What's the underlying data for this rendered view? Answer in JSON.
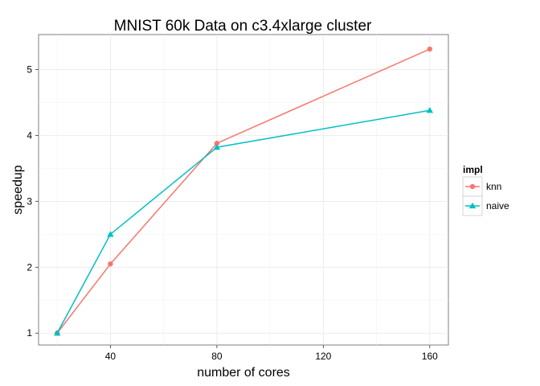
{
  "chart_data": {
    "type": "line",
    "title": "MNIST 60k Data on c3.4xlarge cluster",
    "xlabel": "number of cores",
    "ylabel": "speedup",
    "xlim": [
      13,
      167
    ],
    "ylim": [
      0.82,
      5.53
    ],
    "x_ticks": [
      40,
      80,
      120,
      160
    ],
    "y_ticks": [
      1,
      2,
      3,
      4,
      5
    ],
    "x_minor": [
      20,
      60,
      100,
      140
    ],
    "y_minor": [
      1.5,
      2.5,
      3.5,
      4.5
    ],
    "grid": true,
    "legend": {
      "title": "impl",
      "position": "right"
    },
    "series": [
      {
        "name": "knn",
        "color": "#F8766D",
        "marker": "circle",
        "x": [
          20,
          40,
          80,
          160
        ],
        "values": [
          1.0,
          2.05,
          3.88,
          5.31
        ]
      },
      {
        "name": "naive",
        "color": "#00BFC4",
        "marker": "triangle",
        "x": [
          20,
          40,
          80,
          160
        ],
        "values": [
          1.0,
          2.5,
          3.82,
          4.38
        ]
      }
    ]
  }
}
